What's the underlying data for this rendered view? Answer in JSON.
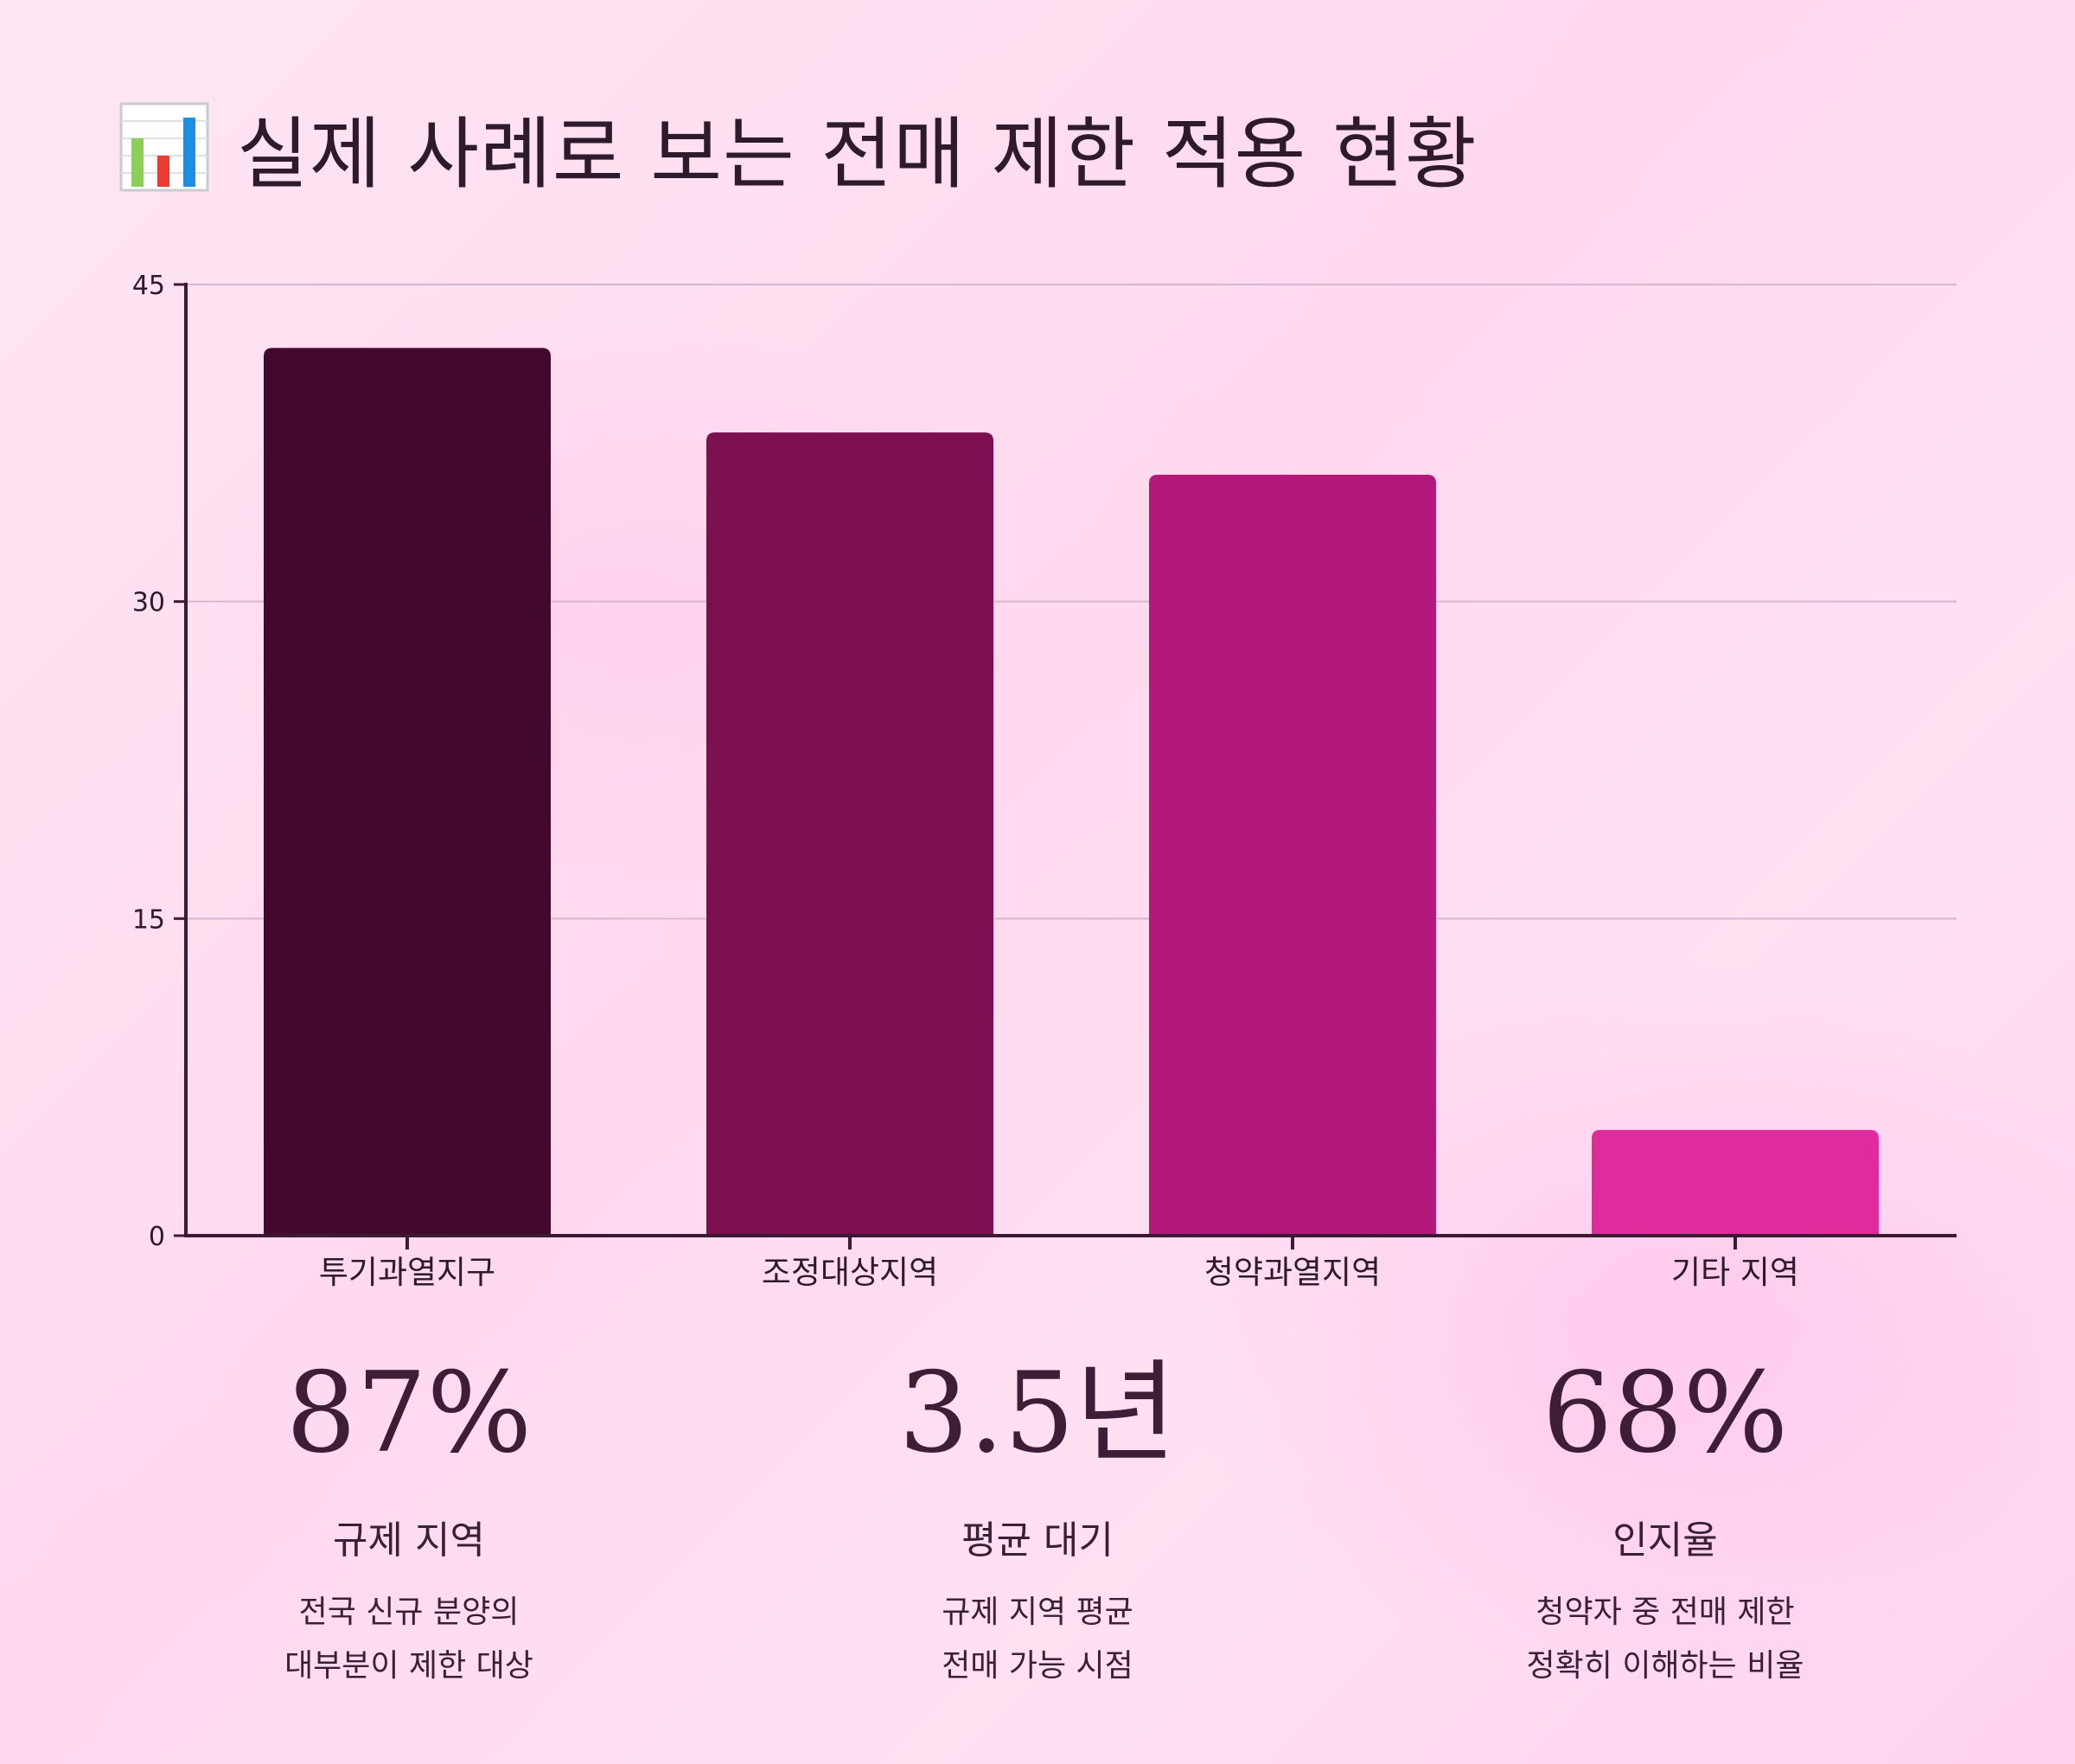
{
  "title": {
    "icon": "bar-chart-emoji-icon",
    "text": "실제 사례로 보는 전매 제한 적용 현황"
  },
  "chart_data": {
    "type": "bar",
    "title": "",
    "xlabel": "",
    "ylabel": "",
    "categories": [
      "투기과열지구",
      "조정대상지역",
      "청약과열지역",
      "기타 지역"
    ],
    "values": [
      42,
      38,
      36,
      5
    ],
    "yticks": [
      0,
      15,
      30,
      45
    ],
    "ylim": [
      0,
      45
    ],
    "grid": true,
    "legend": "none",
    "colors": [
      "#42092d",
      "#7b0f50",
      "#b3197a",
      "#e02b9c"
    ]
  },
  "stats": [
    {
      "value": "87%",
      "label": "규제 지역",
      "desc": [
        "전국 신규 분양의",
        "대부분이 제한 대상"
      ]
    },
    {
      "value": "3.5년",
      "label": "평균 대기",
      "desc": [
        "규제 지역 평균",
        "전매 가능 시점"
      ]
    },
    {
      "value": "68%",
      "label": "인지율",
      "desc": [
        "청약자 중 전매 제한",
        "정확히 이해하는 비율"
      ]
    }
  ]
}
